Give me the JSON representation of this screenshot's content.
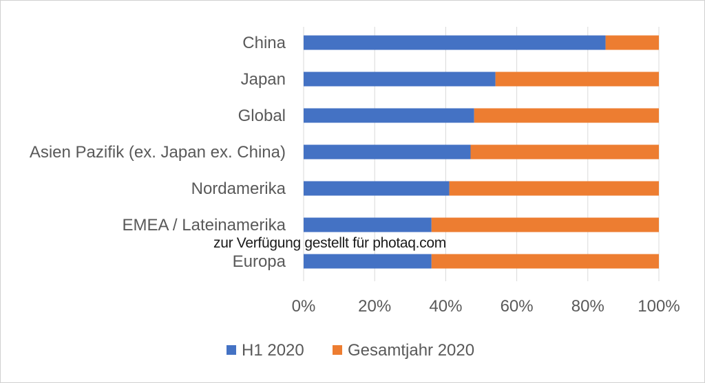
{
  "chart_data": {
    "type": "bar",
    "orientation": "horizontal",
    "stacked": true,
    "categories": [
      "China",
      "Japan",
      "Global",
      "Asien Pazifik (ex. Japan ex. China)",
      "Nordamerika",
      "EMEA / Lateinamerika",
      "Europa"
    ],
    "series": [
      {
        "name": "H1 2020",
        "color": "#4472C4",
        "values": [
          85,
          54,
          48,
          47,
          41,
          36,
          36
        ]
      },
      {
        "name": "Gesamtjahr 2020",
        "color": "#ED7D31",
        "values": [
          15,
          46,
          52,
          53,
          59,
          64,
          64
        ]
      }
    ],
    "xlim": [
      0,
      100
    ],
    "xticks": [
      "0%",
      "20%",
      "40%",
      "60%",
      "80%",
      "100%"
    ],
    "grid": true,
    "legend_position": "bottom"
  },
  "watermark": "zur Verfügung gestellt für photaq.com"
}
